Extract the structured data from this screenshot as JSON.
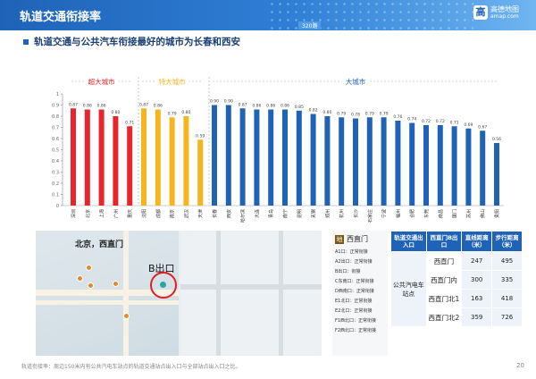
{
  "header": {
    "title": "轨道交通衔接率",
    "badge": "320路"
  },
  "logo": {
    "icon": "高",
    "cn": "高德地图",
    "en": "amap.com"
  },
  "subtitle": "轨道交通与公共汽车衔接最好的城市为长春和西安",
  "chart_data": {
    "type": "bar",
    "categories": [
      "深圳",
      "北京",
      "上海",
      "广州",
      "重庆",
      "沈阳",
      "成都",
      "南京",
      "武汉",
      "天津",
      "长春",
      "西安",
      "哈尔滨",
      "大连",
      "青岛",
      "南宁",
      "昆明",
      "无锡",
      "郑州",
      "杭州",
      "长沙",
      "石家庄",
      "宁波",
      "福州",
      "合肥",
      "东莞",
      "南昌",
      "厦门",
      "苏州",
      "佛山",
      "贵阳"
    ],
    "values": [
      0.87,
      0.86,
      0.86,
      0.8,
      0.71,
      0.87,
      0.86,
      0.79,
      0.8,
      0.59,
      0.9,
      0.9,
      0.87,
      0.86,
      0.86,
      0.86,
      0.85,
      0.82,
      0.8,
      0.79,
      0.78,
      0.79,
      0.79,
      0.76,
      0.74,
      0.72,
      0.72,
      0.71,
      0.69,
      0.67,
      0.56
    ],
    "data_labels": [
      "0.87",
      "0.86",
      "0.86",
      "0.80",
      "0.71",
      "0.87",
      "0.86",
      "0.79",
      "0.80",
      "0.59",
      "0.90",
      "0.90",
      "0.87",
      "0.86",
      "0.86",
      "0.86",
      "0.85",
      "0.82",
      "0.80",
      "0.79",
      "0.78",
      "0.79",
      "0.79",
      "0.76",
      "0.74",
      "0.72",
      "0.72",
      "0.71",
      "0.69",
      "0.67",
      "0.56"
    ],
    "groups": [
      {
        "name": "超大城市",
        "start": 0,
        "end": 4,
        "color": "#e8252b"
      },
      {
        "name": "特大城市",
        "start": 5,
        "end": 9,
        "color": "#f5b51e"
      },
      {
        "name": "大城市",
        "start": 10,
        "end": 30,
        "color": "#1f63b8"
      }
    ],
    "yticks": [
      "1",
      "0.9",
      "0.8",
      "0.7",
      "0.6",
      "0.5",
      "0.4",
      "0.3",
      "0.2",
      "0.1",
      "0"
    ],
    "ylim": [
      0,
      1
    ],
    "grid": false,
    "legend": "top"
  },
  "map": {
    "city_label": "北京，西直门",
    "exit_label": "B出口"
  },
  "legend_panel": {
    "icon": "地",
    "title": "西直门",
    "items": [
      "A1口：正常衔接",
      "A2出口：正常衔接",
      "B出口：衔接",
      "C东南口：正常衔接",
      "D西南口：正常衔接",
      "E1北口：正常衔接",
      "E2北口：正常衔接",
      "F1西北口：正常衔接",
      "F2西北口：正常衔接"
    ]
  },
  "table": {
    "headers": [
      "轨道交通出入口",
      "西直门B出口",
      "直线距离（米）",
      "步行距离（米）"
    ],
    "group_label": "公共汽电车站点",
    "rows": [
      {
        "stop": "西直门",
        "straight": "247",
        "walk": "495"
      },
      {
        "stop": "西直门内",
        "straight": "300",
        "walk": "335"
      },
      {
        "stop": "西直门北1",
        "straight": "163",
        "walk": "418"
      },
      {
        "stop": "西直门北2",
        "straight": "359",
        "walk": "726"
      }
    ]
  },
  "footnote": "轨道衔接率：周边150米内有公共汽电车站点的轨道交通站点出入口与全部站点出入口之比。",
  "page_number": "20"
}
